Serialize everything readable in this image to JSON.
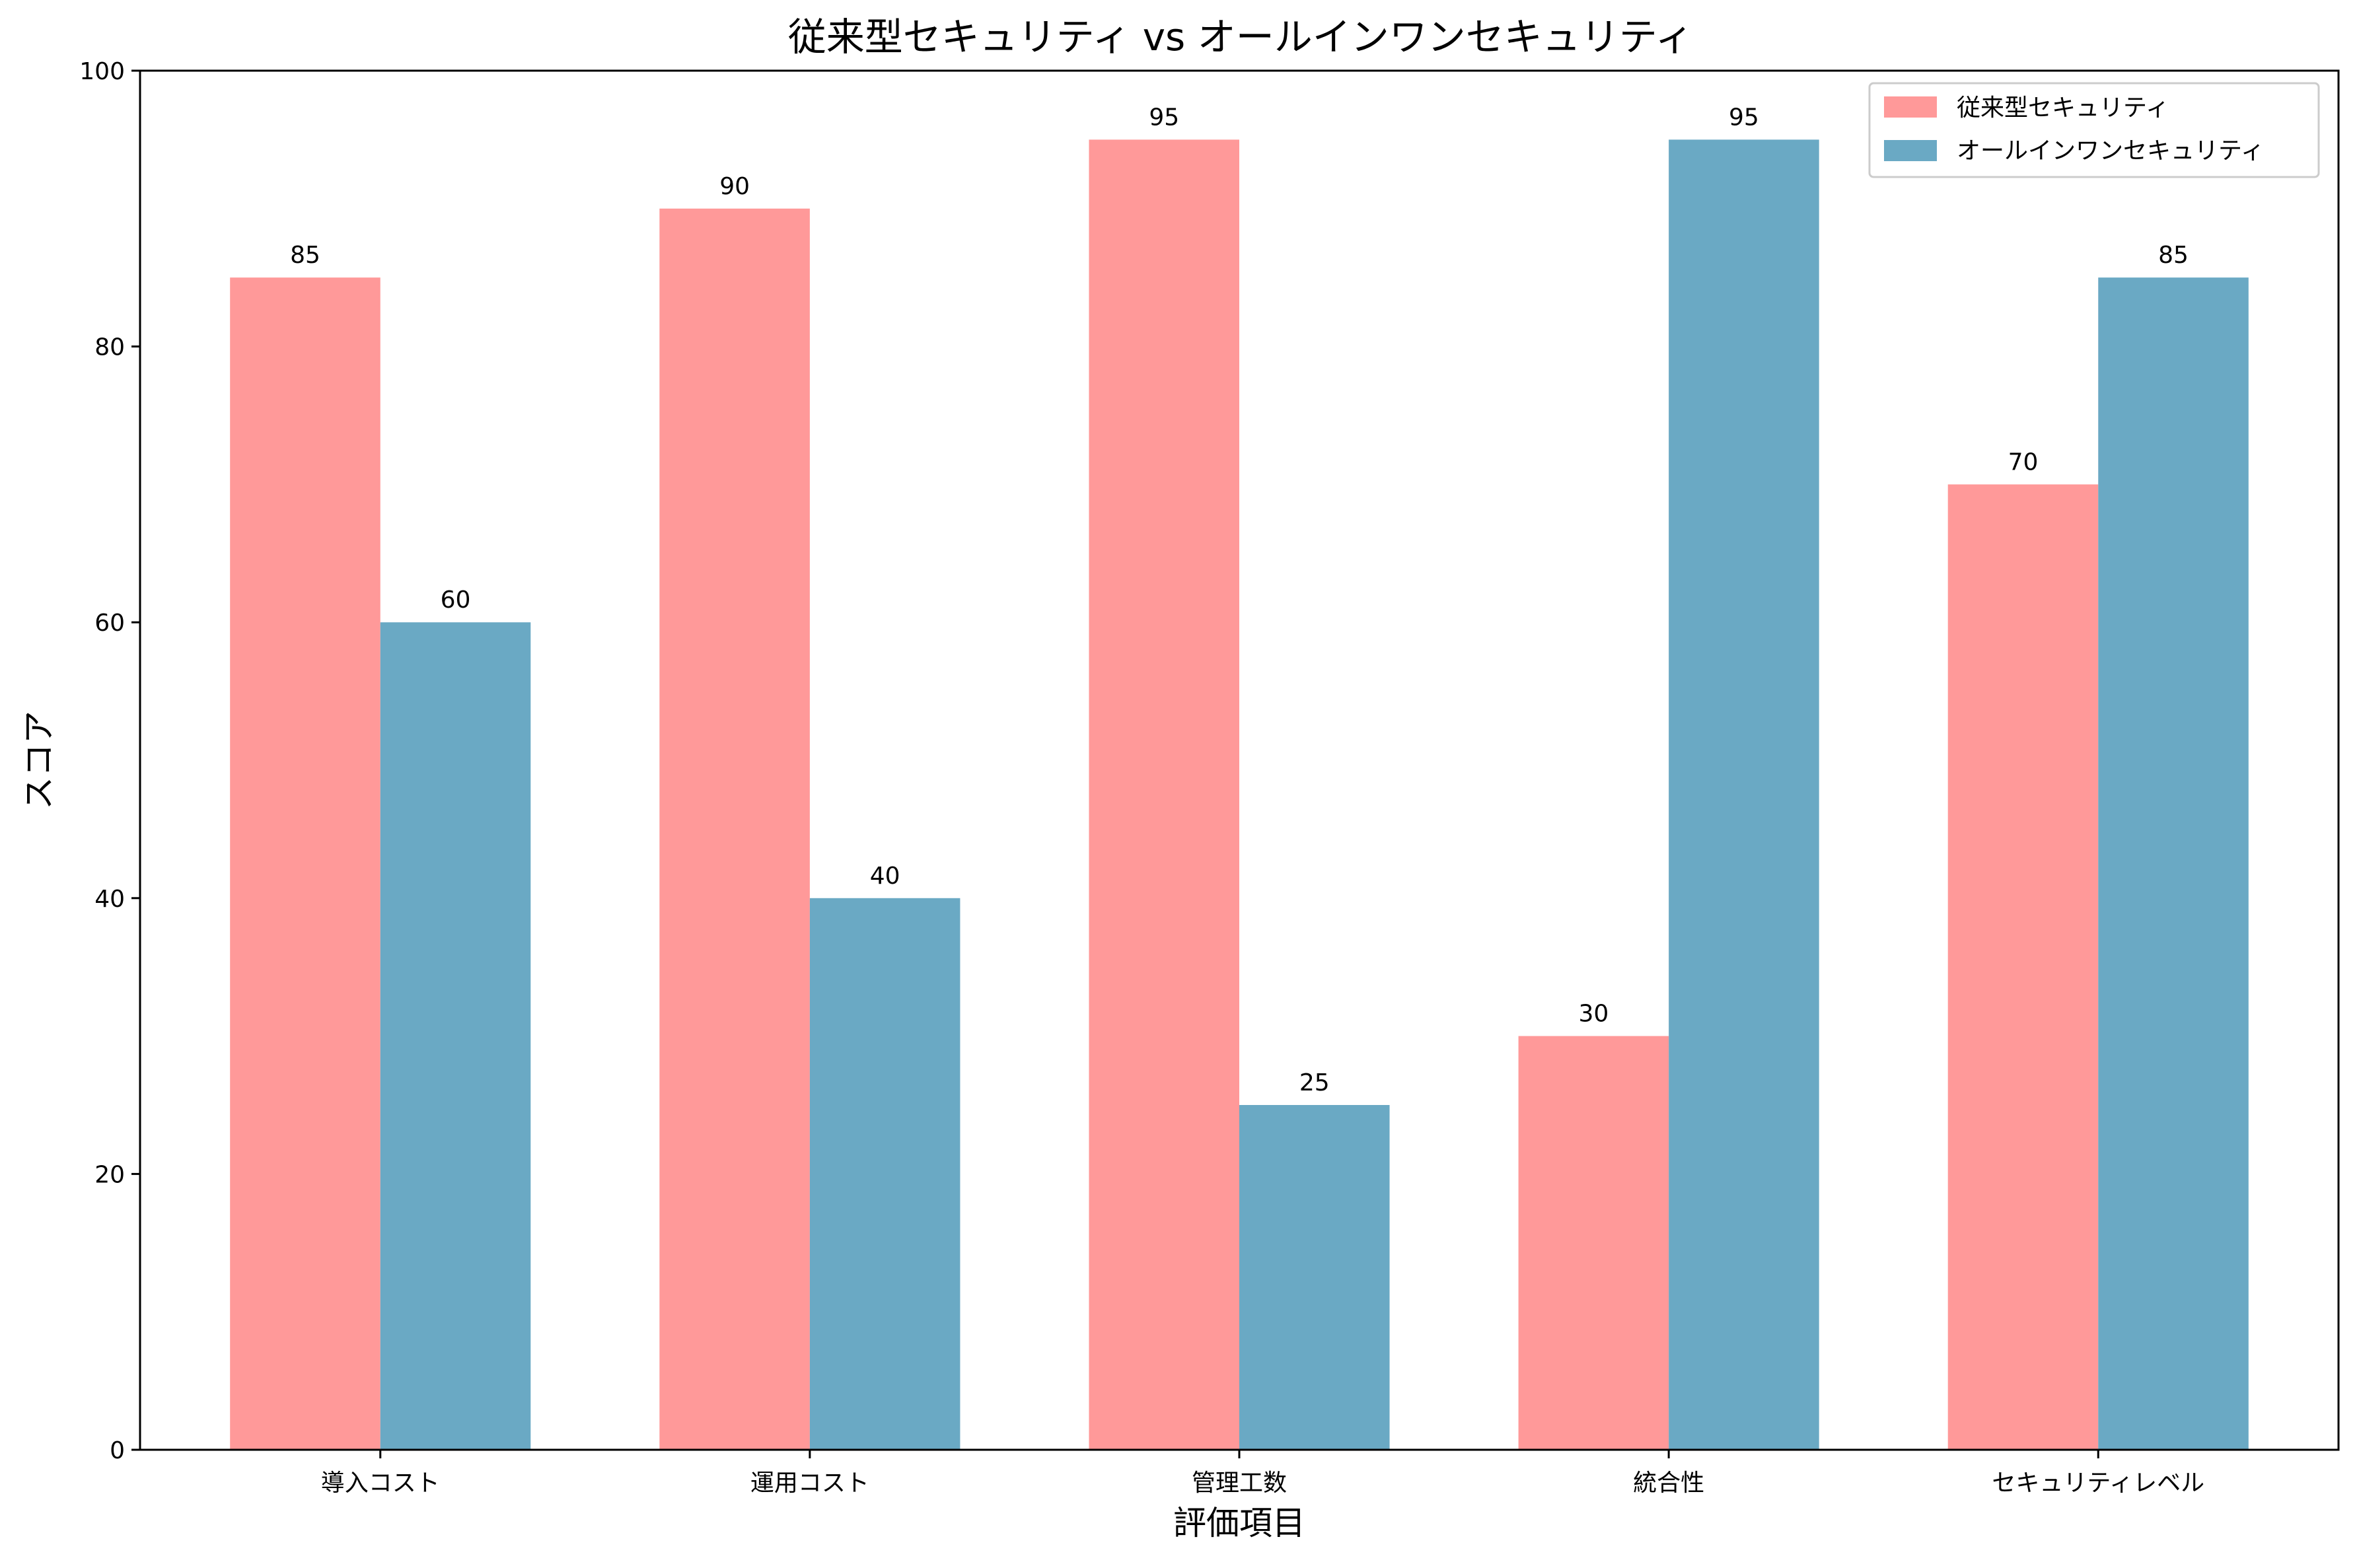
{
  "chart_data": {
    "type": "bar",
    "title": "従来型セキュリティ vs オールインワンセキュリティ",
    "xlabel": "評価項目",
    "ylabel": "スコア",
    "categories": [
      "導入コスト",
      "運用コスト",
      "管理工数",
      "統合性",
      "セキュリティレベル"
    ],
    "series": [
      {
        "name": "従来型セキュリティ",
        "values": [
          85,
          90,
          95,
          30,
          70
        ],
        "color": "#ff9999"
      },
      {
        "name": "オールインワンセキュリティ",
        "values": [
          60,
          40,
          25,
          95,
          85
        ],
        "color": "#6aa9c4"
      }
    ],
    "ylim": [
      0,
      100
    ],
    "yticks": [
      0,
      20,
      40,
      60,
      80,
      100
    ],
    "grid": false,
    "legend_position": "top-right",
    "data_labels": true
  }
}
